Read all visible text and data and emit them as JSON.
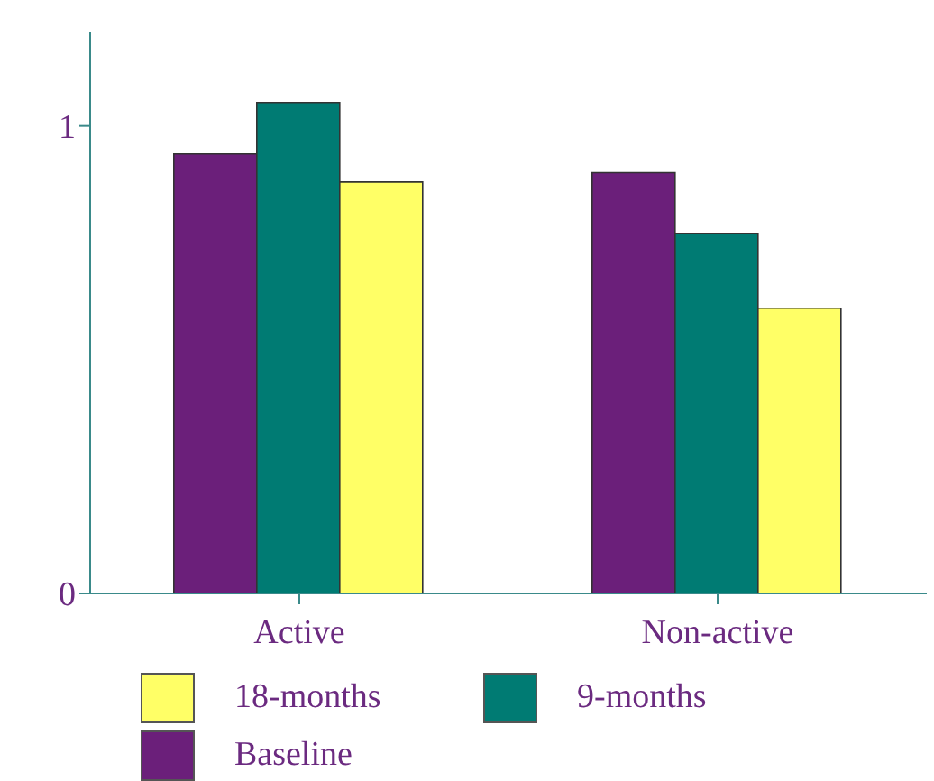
{
  "chart_data": {
    "type": "bar",
    "categories": [
      "Active",
      "Non-active"
    ],
    "series": [
      {
        "name": "Baseline",
        "color": "#6b1f7a",
        "values": [
          0.94,
          0.9
        ]
      },
      {
        "name": "9-months",
        "color": "#007b73",
        "values": [
          1.05,
          0.77
        ]
      },
      {
        "name": "18-months",
        "color": "#ffff66",
        "values": [
          0.88,
          0.61
        ]
      }
    ],
    "ylim": [
      0,
      1.2
    ],
    "yticks": [
      0,
      1
    ],
    "grid": false,
    "legend": "bottom"
  }
}
